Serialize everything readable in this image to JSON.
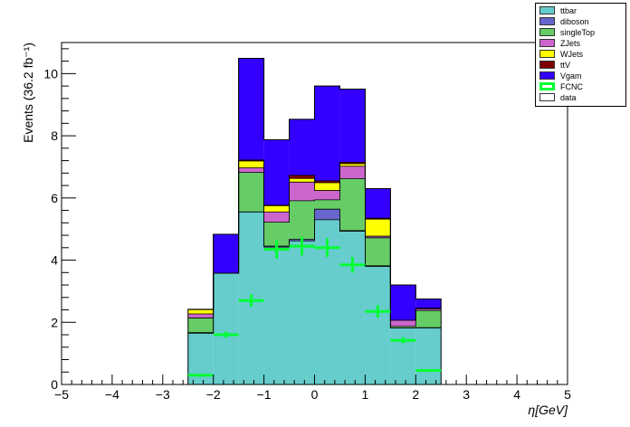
{
  "chart_data": {
    "type": "bar",
    "stacked": true,
    "title": "",
    "xlabel": "η[GeV]",
    "ylabel": "Events (36.2 fb⁻¹)",
    "xlim": [
      -5,
      5
    ],
    "ylim": [
      0,
      11
    ],
    "x_ticks": [
      "−5",
      "−4",
      "−3",
      "−2",
      "−1",
      "0",
      "1",
      "2",
      "3",
      "4",
      "5"
    ],
    "x_tick_values": [
      -5,
      -4,
      -3,
      -2,
      -1,
      0,
      1,
      2,
      3,
      4,
      5
    ],
    "y_ticks": [
      "0",
      "2",
      "4",
      "6",
      "8",
      "10"
    ],
    "y_tick_values": [
      0,
      2,
      4,
      6,
      8,
      10
    ],
    "grid": false,
    "legend_position": "top-right",
    "bin_edges": [
      -2.5,
      -2.0,
      -1.5,
      -1.0,
      -0.5,
      0.0,
      0.5,
      1.0,
      1.5,
      2.0,
      2.5
    ],
    "series": [
      {
        "name": "ttbar",
        "color": "#66cccc",
        "values": [
          1.65,
          3.58,
          5.55,
          4.42,
          4.62,
          5.3,
          4.93,
          3.8,
          1.82,
          1.82
        ]
      },
      {
        "name": "diboson",
        "color": "#6666cc",
        "values": [
          0.02,
          0.0,
          0.0,
          0.03,
          0.05,
          0.34,
          0.02,
          0.02,
          0.0,
          0.01
        ]
      },
      {
        "name": "singleTop",
        "color": "#66cc66",
        "values": [
          0.47,
          0.0,
          1.27,
          0.77,
          1.24,
          0.3,
          1.67,
          0.9,
          0.05,
          0.55
        ]
      },
      {
        "name": "ZJets",
        "color": "#cc66cc",
        "values": [
          0.13,
          0.0,
          0.15,
          0.33,
          0.6,
          0.3,
          0.4,
          0.05,
          0.2,
          0.05
        ]
      },
      {
        "name": "WJets",
        "color": "#ffff00",
        "values": [
          0.14,
          0.0,
          0.22,
          0.2,
          0.12,
          0.25,
          0.08,
          0.55,
          0.0,
          0.02
        ]
      },
      {
        "name": "ttV",
        "color": "#800000",
        "values": [
          0.01,
          0.0,
          0.03,
          0.02,
          0.1,
          0.06,
          0.05,
          0.03,
          0.0,
          0.0
        ]
      },
      {
        "name": "Vgam",
        "color": "#3300ff",
        "values": [
          0.0,
          1.25,
          3.27,
          2.1,
          1.8,
          3.05,
          2.35,
          0.95,
          1.13,
          0.3
        ]
      }
    ],
    "signal": {
      "name": "FCNC",
      "color": "#00ff33",
      "values": [
        0.3,
        1.6,
        2.7,
        4.35,
        4.45,
        4.4,
        3.85,
        2.35,
        1.42,
        0.45
      ],
      "errors": [
        0.05,
        0.1,
        0.2,
        0.3,
        0.3,
        0.3,
        0.25,
        0.2,
        0.1,
        0.05
      ]
    },
    "data_entry": {
      "name": "data",
      "color": "#ffffff"
    }
  }
}
